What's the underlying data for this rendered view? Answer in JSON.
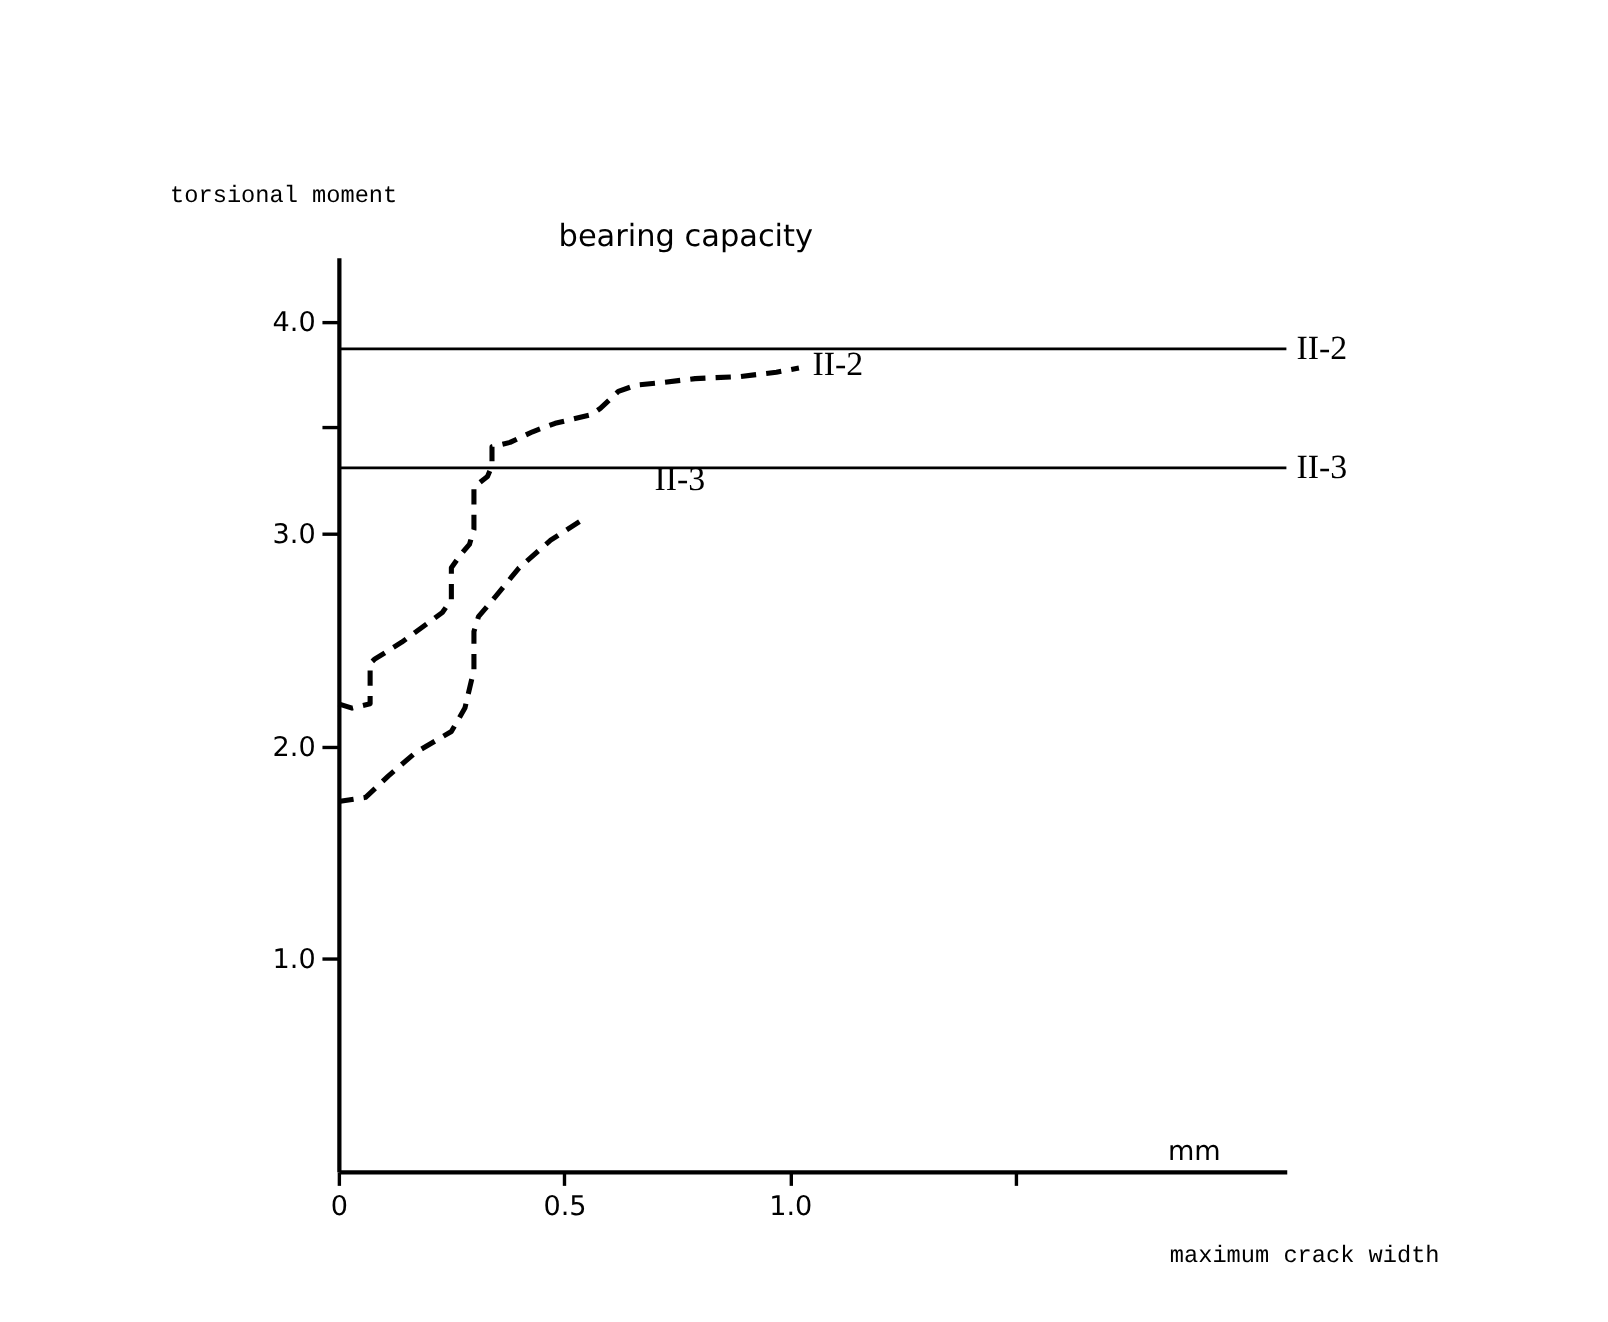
{
  "chart_data": {
    "type": "line",
    "xlabel": "maximum crack width",
    "ylabel": "torsional moment",
    "xlim": [
      0,
      2.1
    ],
    "ylim": [
      0,
      4.3
    ],
    "xticks": [
      0,
      0.5,
      {
        "value": 1.0,
        "label": "1.0"
      },
      {
        "value": 1.5,
        "label": null
      }
    ],
    "yticks": [
      {
        "value": 1.0,
        "label": "1.0"
      },
      {
        "value": 2.0,
        "label": "2.0"
      },
      {
        "value": 3.0,
        "label": "3.0"
      },
      {
        "value": 3.5,
        "label": null
      },
      {
        "value": 4.0,
        "label": "4.0"
      }
    ],
    "grid": false,
    "line_style": "dashed",
    "marker": "none",
    "series": [
      {
        "name": "II-2",
        "color": "#000000",
        "x": [
          0,
          0.03,
          0.07,
          0.07,
          0.07,
          0.08,
          0.14,
          0.23,
          0.25,
          0.25,
          0.27,
          0.29,
          0.3,
          0.3,
          0.3,
          0.33,
          0.34,
          0.34,
          0.38,
          0.43,
          0.48,
          0.56,
          0.58,
          0.62,
          0.66,
          0.71,
          0.79,
          0.89,
          0.97,
          1.02
        ],
        "values": [
          2.2,
          2.18,
          2.2,
          2.26,
          2.39,
          2.41,
          2.49,
          2.63,
          2.69,
          2.84,
          2.9,
          2.95,
          3.02,
          3.17,
          3.22,
          3.27,
          3.32,
          3.41,
          3.43,
          3.48,
          3.52,
          3.56,
          3.59,
          3.67,
          3.7,
          3.71,
          3.73,
          3.74,
          3.76,
          3.78
        ]
      },
      {
        "name": "II-3",
        "color": "#000000",
        "x": [
          0,
          0.06,
          0.11,
          0.17,
          0.25,
          0.28,
          0.3,
          0.3,
          0.31,
          0.35,
          0.4,
          0.47,
          0.55
        ],
        "values": [
          1.74,
          1.76,
          1.86,
          1.97,
          2.07,
          2.18,
          2.36,
          2.54,
          2.61,
          2.71,
          2.84,
          2.97,
          3.08
        ]
      }
    ],
    "ref_lines": [
      {
        "axis": "y",
        "value": 3.87,
        "label": "II-2",
        "color": "#000000",
        "line_style": "solid"
      },
      {
        "axis": "y",
        "value": 3.31,
        "label": "II-3",
        "color": "#000000",
        "line_style": "solid"
      }
    ],
    "annotations": [
      "bearing capacity",
      "mm"
    ]
  }
}
